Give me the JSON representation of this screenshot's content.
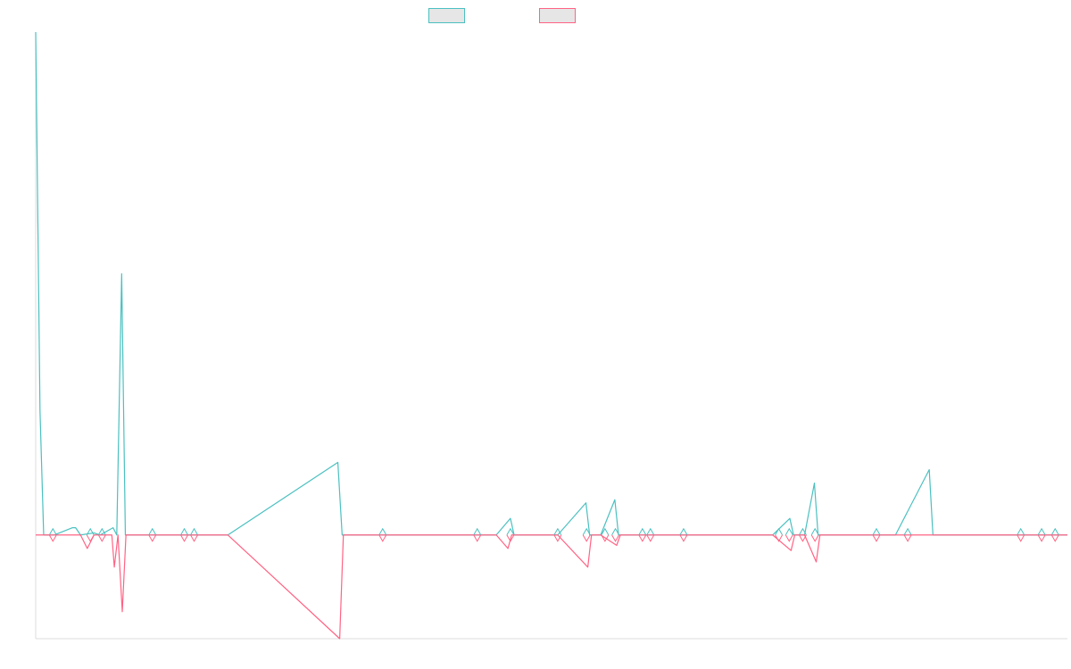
{
  "chart_data": {
    "type": "line",
    "title": "",
    "xlabel": "",
    "ylabel": "",
    "legend": {
      "placement": "top-center",
      "entries": [
        {
          "name": "",
          "color": "#4BC0C0",
          "fill": "#E6E6E6"
        },
        {
          "name": "",
          "color": "#FF6384",
          "fill": "#E6E6E6"
        }
      ]
    },
    "grid": false,
    "xlim": [
      0,
      168
    ],
    "ylim": [
      -100,
      485
    ],
    "baseline": 0,
    "series": [
      {
        "color": "#4BC0C0",
        "points": [
          [
            0,
            485
          ],
          [
            0.7,
            120
          ],
          [
            1.3,
            0
          ],
          [
            3,
            0
          ],
          [
            6,
            7
          ],
          [
            6.5,
            7
          ],
          [
            7.3,
            0
          ],
          [
            9.5,
            2
          ],
          [
            10.5,
            0
          ],
          [
            12.6,
            7
          ],
          [
            13.2,
            0
          ],
          [
            14,
            252
          ],
          [
            14.6,
            0
          ],
          [
            18.8,
            0
          ],
          [
            24.1,
            0
          ],
          [
            26,
            0
          ],
          [
            31.3,
            0
          ],
          [
            49.2,
            70
          ],
          [
            49.9,
            0
          ],
          [
            56.4,
            0
          ],
          [
            62,
            0
          ],
          [
            75,
            0
          ],
          [
            77.3,
            16
          ],
          [
            77.9,
            0
          ],
          [
            80,
            0
          ],
          [
            85,
            0
          ],
          [
            89.6,
            31
          ],
          [
            90.2,
            0
          ],
          [
            92,
            0
          ],
          [
            94.3,
            34
          ],
          [
            94.9,
            0
          ],
          [
            98.4,
            0
          ],
          [
            100,
            0
          ],
          [
            106,
            0
          ],
          [
            120,
            0
          ],
          [
            122.8,
            16
          ],
          [
            123.4,
            0
          ],
          [
            125.2,
            0
          ],
          [
            126.8,
            50
          ],
          [
            127.4,
            0
          ],
          [
            140,
            0
          ],
          [
            145.5,
            63
          ],
          [
            146.1,
            0
          ],
          [
            168,
            0
          ]
        ]
      },
      {
        "color": "#FF6384",
        "points": [
          [
            0,
            0
          ],
          [
            1.3,
            0
          ],
          [
            3,
            0
          ],
          [
            7.3,
            0
          ],
          [
            8.4,
            -13
          ],
          [
            9.5,
            0
          ],
          [
            12.4,
            0
          ],
          [
            12.8,
            -31
          ],
          [
            13.4,
            0
          ],
          [
            14.1,
            -74
          ],
          [
            14.7,
            0
          ],
          [
            24.1,
            0
          ],
          [
            26,
            0
          ],
          [
            31.3,
            0
          ],
          [
            49.5,
            -100
          ],
          [
            50.1,
            0
          ],
          [
            56.4,
            0
          ],
          [
            62,
            0
          ],
          [
            75,
            0
          ],
          [
            76.9,
            -13
          ],
          [
            77.5,
            0
          ],
          [
            80,
            0
          ],
          [
            85,
            0
          ],
          [
            89.9,
            -31
          ],
          [
            90.5,
            0
          ],
          [
            92,
            0
          ],
          [
            94.6,
            -10
          ],
          [
            95.2,
            0
          ],
          [
            98.4,
            0
          ],
          [
            100,
            0
          ],
          [
            106,
            0
          ],
          [
            120,
            0
          ],
          [
            123,
            -15
          ],
          [
            123.6,
            0
          ],
          [
            125.2,
            0
          ],
          [
            127.1,
            -26
          ],
          [
            127.7,
            0
          ],
          [
            140,
            0
          ],
          [
            146,
            0
          ],
          [
            168,
            0
          ]
        ]
      }
    ],
    "point_markers": [
      {
        "x": 2.8,
        "y": 0
      },
      {
        "x": 8.9,
        "y": 0
      },
      {
        "x": 10.8,
        "y": 0
      },
      {
        "x": 19,
        "y": 0
      },
      {
        "x": 24.2,
        "y": 0
      },
      {
        "x": 25.8,
        "y": 0
      },
      {
        "x": 56.5,
        "y": 0
      },
      {
        "x": 77.3,
        "y": 0
      },
      {
        "x": 71.9,
        "y": 0
      },
      {
        "x": 85,
        "y": 0
      },
      {
        "x": 89.7,
        "y": 0
      },
      {
        "x": 92.7,
        "y": 0
      },
      {
        "x": 94.4,
        "y": 0
      },
      {
        "x": 98.8,
        "y": 0
      },
      {
        "x": 100.1,
        "y": 0
      },
      {
        "x": 105.5,
        "y": 0
      },
      {
        "x": 121,
        "y": 0
      },
      {
        "x": 122.7,
        "y": 0
      },
      {
        "x": 124.9,
        "y": 0
      },
      {
        "x": 126.9,
        "y": 0
      },
      {
        "x": 136.9,
        "y": 0
      },
      {
        "x": 142,
        "y": 0
      },
      {
        "x": 160.4,
        "y": 0
      },
      {
        "x": 163.8,
        "y": 0
      },
      {
        "x": 166,
        "y": 0
      }
    ]
  }
}
